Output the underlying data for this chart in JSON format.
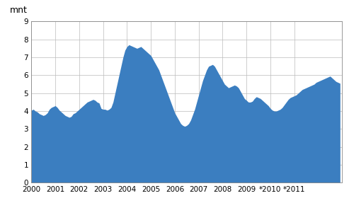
{
  "ylabel": "mnt",
  "ylim": [
    0,
    9
  ],
  "yticks": [
    0,
    1,
    2,
    3,
    4,
    5,
    6,
    7,
    8,
    9
  ],
  "fill_color": "#3B7EC0",
  "background_color": "#ffffff",
  "grid_color": "#bbbbbb",
  "x_tick_labels": [
    "2000",
    "2001",
    "2002",
    "2003",
    "2004",
    "2005",
    "2006",
    "2007",
    "2008",
    "2009",
    "*2010",
    "*2011"
  ],
  "data_monthly": [
    4.05,
    4.1,
    4.0,
    3.95,
    3.85,
    3.8,
    3.75,
    3.8,
    3.9,
    4.1,
    4.2,
    4.25,
    4.3,
    4.2,
    4.05,
    3.95,
    3.85,
    3.75,
    3.7,
    3.65,
    3.7,
    3.85,
    3.9,
    4.0,
    4.1,
    4.2,
    4.3,
    4.4,
    4.5,
    4.55,
    4.6,
    4.65,
    4.6,
    4.5,
    4.45,
    4.15,
    4.1,
    4.1,
    4.05,
    4.1,
    4.2,
    4.5,
    5.0,
    5.5,
    6.0,
    6.5,
    7.0,
    7.4,
    7.6,
    7.7,
    7.65,
    7.6,
    7.55,
    7.5,
    7.55,
    7.6,
    7.5,
    7.4,
    7.3,
    7.2,
    7.1,
    6.9,
    6.7,
    6.5,
    6.3,
    6.0,
    5.7,
    5.4,
    5.1,
    4.8,
    4.5,
    4.2,
    3.9,
    3.7,
    3.5,
    3.3,
    3.2,
    3.15,
    3.2,
    3.3,
    3.5,
    3.8,
    4.1,
    4.5,
    4.9,
    5.3,
    5.7,
    6.0,
    6.3,
    6.5,
    6.55,
    6.6,
    6.5,
    6.3,
    6.1,
    5.9,
    5.7,
    5.5,
    5.4,
    5.3,
    5.35,
    5.4,
    5.45,
    5.4,
    5.3,
    5.1,
    4.9,
    4.7,
    4.6,
    4.5,
    4.5,
    4.55,
    4.7,
    4.8,
    4.75,
    4.7,
    4.6,
    4.5,
    4.4,
    4.3,
    4.15,
    4.05,
    4.0,
    4.0,
    4.05,
    4.1,
    4.2,
    4.35,
    4.5,
    4.65,
    4.75,
    4.8,
    4.85,
    4.9,
    5.0,
    5.1,
    5.2,
    5.25,
    5.3,
    5.35,
    5.4,
    5.45,
    5.5,
    5.6,
    5.65,
    5.7,
    5.75,
    5.8,
    5.85,
    5.9,
    5.95,
    5.85,
    5.75,
    5.65,
    5.6,
    5.55
  ]
}
